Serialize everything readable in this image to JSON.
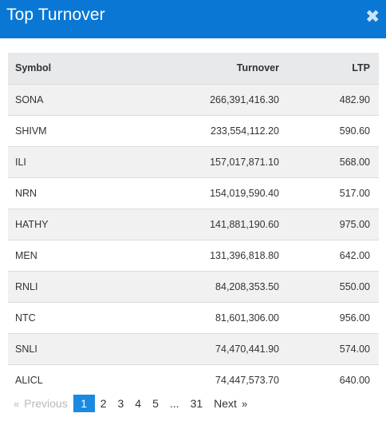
{
  "modal": {
    "title": "Top Turnover",
    "close_icon": "close-icon",
    "close_glyph": "✖"
  },
  "table": {
    "columns": [
      "Symbol",
      "Turnover",
      "LTP"
    ],
    "rows": [
      {
        "symbol": "SONA",
        "turnover": "266,391,416.30",
        "ltp": "482.90"
      },
      {
        "symbol": "SHIVM",
        "turnover": "233,554,112.20",
        "ltp": "590.60"
      },
      {
        "symbol": "ILI",
        "turnover": "157,017,871.10",
        "ltp": "568.00"
      },
      {
        "symbol": "NRN",
        "turnover": "154,019,590.40",
        "ltp": "517.00"
      },
      {
        "symbol": "HATHY",
        "turnover": "141,881,190.60",
        "ltp": "975.00"
      },
      {
        "symbol": "MEN",
        "turnover": "131,396,818.80",
        "ltp": "642.00"
      },
      {
        "symbol": "RNLI",
        "turnover": "84,208,353.50",
        "ltp": "550.00"
      },
      {
        "symbol": "NTC",
        "turnover": "81,601,306.00",
        "ltp": "956.00"
      },
      {
        "symbol": "SNLI",
        "turnover": "74,470,441.90",
        "ltp": "574.00"
      },
      {
        "symbol": "ALICL",
        "turnover": "74,447,573.70",
        "ltp": "640.00"
      }
    ]
  },
  "pagination": {
    "prev_arrow": "«",
    "prev_label": "Previous",
    "pages": [
      "1",
      "2",
      "3",
      "4",
      "5",
      "...",
      "31"
    ],
    "active_page": "1",
    "next_label": "Next",
    "next_arrow": "»",
    "accent_color": "#1a8ae0"
  },
  "colors": {
    "header_bg": "#0a77d5",
    "table_head_bg": "#e8e9eb",
    "row_alt_bg": "#f1f1f1"
  }
}
